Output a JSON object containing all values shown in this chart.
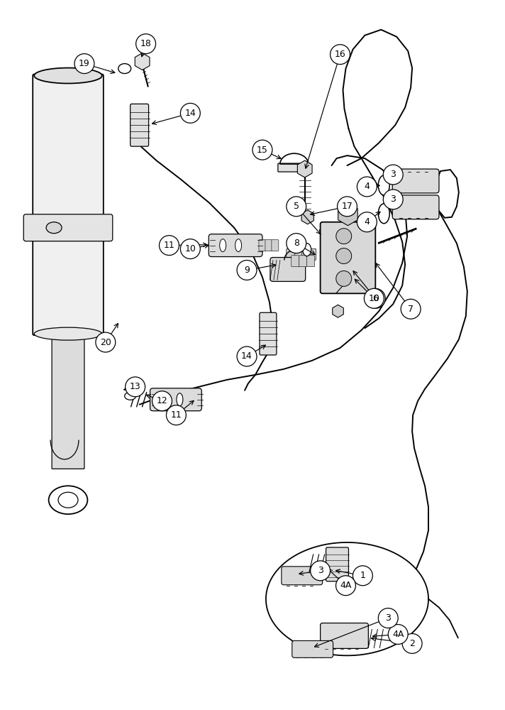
{
  "bg_color": "#ffffff",
  "line_color": "#000000",
  "figsize": [
    7.12,
    10.0
  ],
  "dpi": 100
}
